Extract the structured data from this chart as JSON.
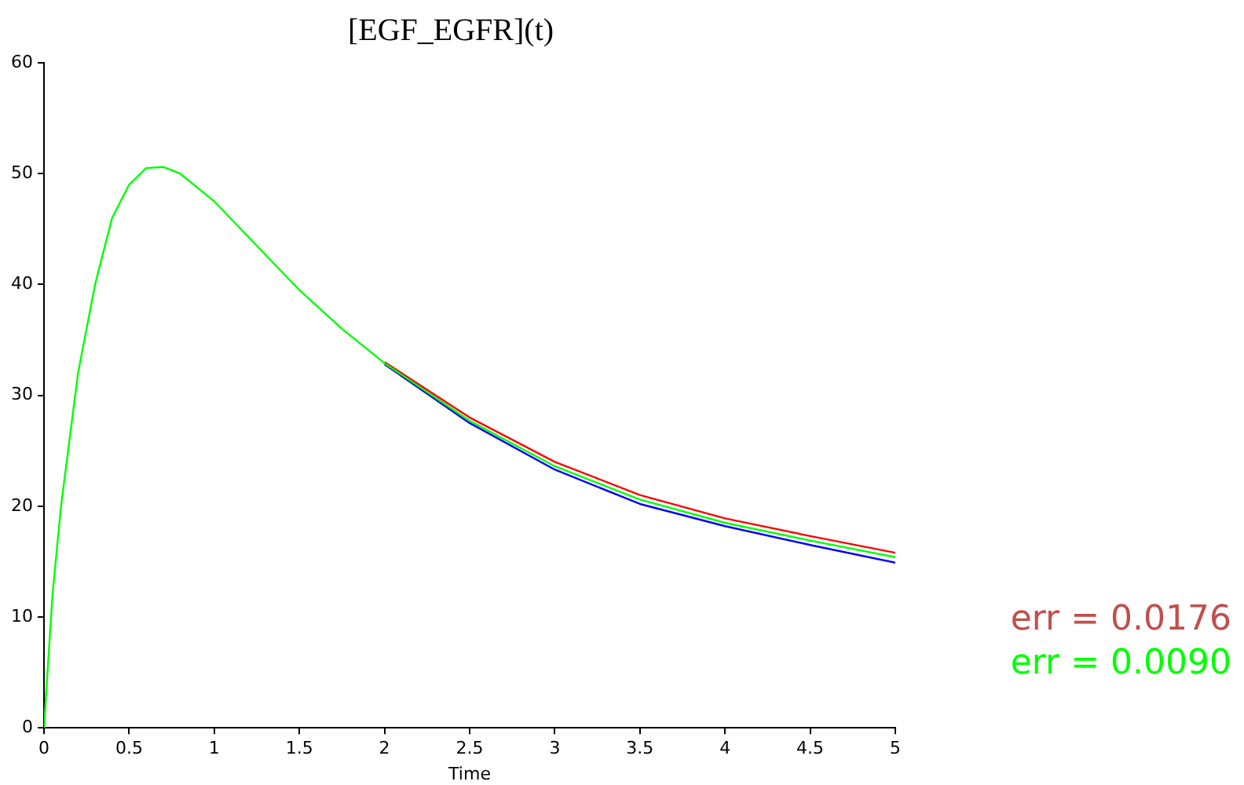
{
  "chart_data": {
    "type": "line",
    "title": "[EGF_EGFR](t)",
    "xlabel": "Time",
    "x": [
      0,
      0.05,
      0.1,
      0.2,
      0.3,
      0.4,
      0.5,
      0.6,
      0.7,
      0.8,
      1,
      1.25,
      1.5,
      1.75,
      2,
      2.5,
      3,
      3.5,
      4,
      4.5,
      5
    ],
    "series": [
      {
        "color": "#0000ff",
        "values": [
          null,
          null,
          null,
          null,
          null,
          null,
          null,
          null,
          null,
          null,
          null,
          null,
          null,
          null,
          32.8,
          27.5,
          23.3,
          20.2,
          18.2,
          16.5,
          14.9
        ]
      },
      {
        "color": "#ff0000",
        "values": [
          null,
          null,
          null,
          null,
          null,
          null,
          null,
          null,
          null,
          null,
          null,
          null,
          null,
          null,
          33,
          28,
          24,
          21,
          18.9,
          17.3,
          15.8
        ]
      },
      {
        "color": "#00ff00",
        "values": [
          0,
          12,
          20,
          32,
          40,
          46,
          49,
          50.5,
          50.6,
          50,
          47.5,
          43.5,
          39.5,
          36,
          32.9,
          27.7,
          23.6,
          20.6,
          18.5,
          16.9,
          15.4
        ]
      }
    ],
    "xlim": [
      0,
      5
    ],
    "xticks": [
      0,
      0.5,
      1,
      1.5,
      2,
      2.5,
      3,
      3.5,
      4,
      4.5,
      5
    ],
    "ylim": [
      0,
      60
    ],
    "yticks": [
      0,
      10,
      20,
      30,
      40,
      50,
      60
    ],
    "grid": false,
    "marker": "none",
    "line_style": "solid",
    "annotations": [
      "err = 0.0176",
      "err = 0.0090"
    ]
  }
}
